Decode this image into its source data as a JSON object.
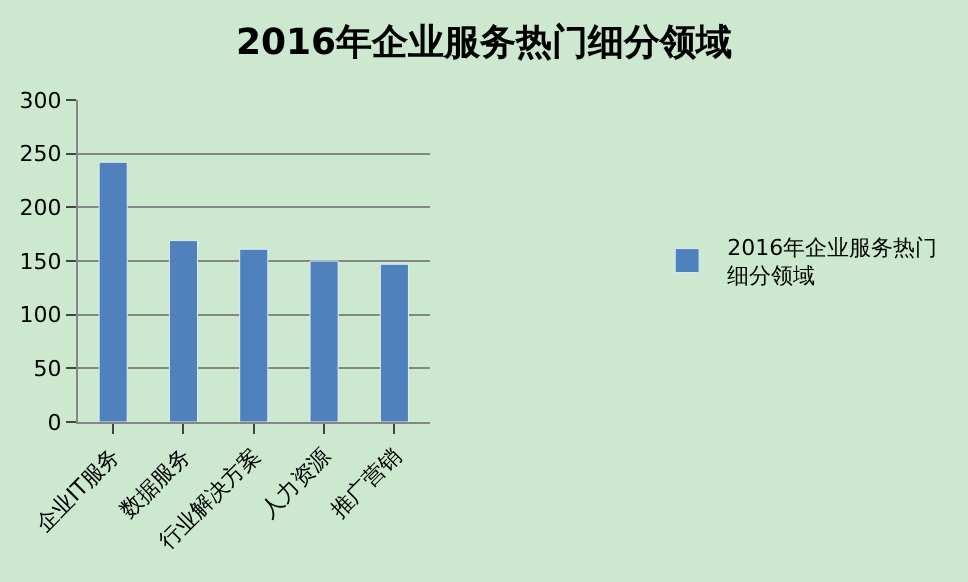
{
  "chart_data": {
    "type": "bar",
    "title": "2016年企业服务热门细分领域",
    "categories": [
      "企业IT服务",
      "数据服务",
      "行业解决方案",
      "人力资源",
      "推广营销"
    ],
    "series": [
      {
        "name": "2016年企业服务热门细分领域",
        "color": "#4f81bd",
        "values": [
          242,
          169,
          161,
          150,
          147
        ]
      }
    ],
    "ylim": [
      0,
      300
    ],
    "yticks": [
      0,
      50,
      100,
      150,
      200,
      250,
      300
    ],
    "grid": "y",
    "legend": "right"
  }
}
